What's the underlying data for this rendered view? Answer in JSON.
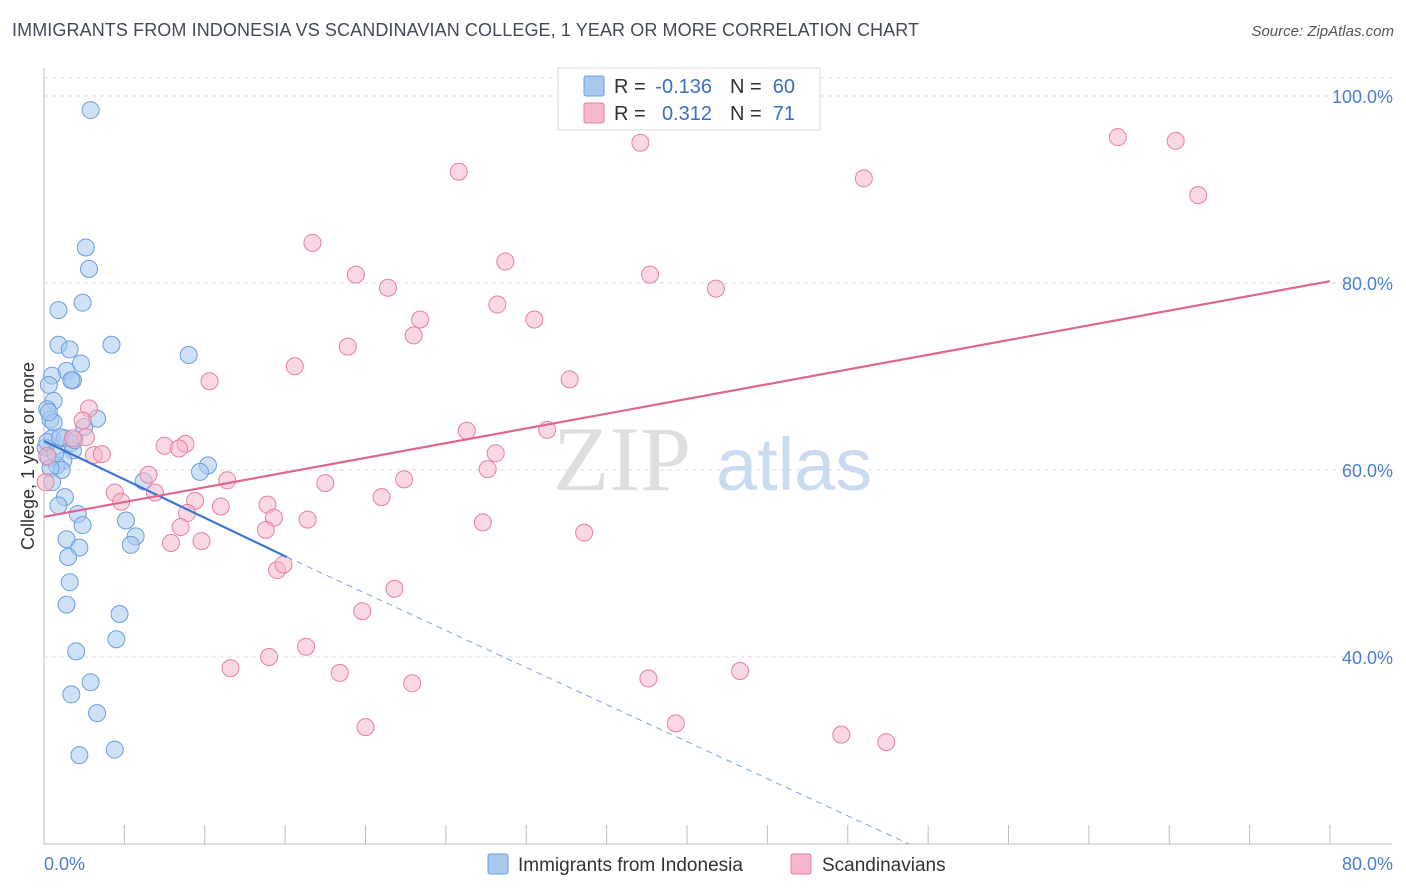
{
  "header": {
    "title": "IMMIGRANTS FROM INDONESIA VS SCANDINAVIAN COLLEGE, 1 YEAR OR MORE CORRELATION CHART",
    "source": "Source: ZipAtlas.com"
  },
  "watermark": {
    "zip": "ZIP",
    "atlas": "atlas"
  },
  "legend": {
    "rows": [
      {
        "r_label": "R =",
        "r_value": "-0.136",
        "n_label": "N =",
        "n_value": "60",
        "color": "#a8c8f0"
      },
      {
        "r_label": "R =",
        "r_value": "0.312",
        "n_label": "N =",
        "n_value": "71",
        "color": "#f5b8cb"
      }
    ]
  },
  "bottom_legend": {
    "items": [
      {
        "label": "Immigrants from Indonesia",
        "color": "#a8c8f0"
      },
      {
        "label": "Scandinavians",
        "color": "#f5b8cb"
      }
    ]
  },
  "chart_data": {
    "type": "scatter",
    "title": "IMMIGRANTS FROM INDONESIA VS SCANDINAVIAN COLLEGE, 1 YEAR OR MORE CORRELATION CHART",
    "xlabel": "",
    "ylabel": "College, 1 year or more",
    "xlim": [
      0,
      80
    ],
    "ylim": [
      20,
      103
    ],
    "x_tick_labels": [
      "0.0%",
      "80.0%"
    ],
    "y_ticks": [
      40,
      60,
      80,
      100
    ],
    "y_tick_labels": [
      "40.0%",
      "60.0%",
      "80.0%",
      "100.0%"
    ],
    "grid": true,
    "legend_position": "top-center",
    "series": [
      {
        "name": "Immigrants from Indonesia",
        "color": "#a8c8f0",
        "stroke": "#6d9fdb",
        "points": [
          [
            2.9,
            98.5
          ],
          [
            2.6,
            83.8
          ],
          [
            2.8,
            81.5
          ],
          [
            2.4,
            77.9
          ],
          [
            0.9,
            77.1
          ],
          [
            4.2,
            73.4
          ],
          [
            0.9,
            73.4
          ],
          [
            1.6,
            72.9
          ],
          [
            2.3,
            71.4
          ],
          [
            1.4,
            70.6
          ],
          [
            0.5,
            70.1
          ],
          [
            0.3,
            69.1
          ],
          [
            1.8,
            69.6
          ],
          [
            1.7,
            69.6
          ],
          [
            9.0,
            72.3
          ],
          [
            0.6,
            67.4
          ],
          [
            0.2,
            66.5
          ],
          [
            0.4,
            65.4
          ],
          [
            0.6,
            65.1
          ],
          [
            3.3,
            65.5
          ],
          [
            2.5,
            64.6
          ],
          [
            0.5,
            63.4
          ],
          [
            1.3,
            63.4
          ],
          [
            1.7,
            62.9
          ],
          [
            0.1,
            62.4
          ],
          [
            1.8,
            62.1
          ],
          [
            0.3,
            61.3
          ],
          [
            1.2,
            61.0
          ],
          [
            0.8,
            60.5
          ],
          [
            1.1,
            60.0
          ],
          [
            10.2,
            60.5
          ],
          [
            9.7,
            59.8
          ],
          [
            6.2,
            58.8
          ],
          [
            1.3,
            57.1
          ],
          [
            0.9,
            56.2
          ],
          [
            2.1,
            55.3
          ],
          [
            5.1,
            54.6
          ],
          [
            2.4,
            54.1
          ],
          [
            5.7,
            52.9
          ],
          [
            1.4,
            52.6
          ],
          [
            2.2,
            51.7
          ],
          [
            5.4,
            52.0
          ],
          [
            1.5,
            50.7
          ],
          [
            1.6,
            48.0
          ],
          [
            1.4,
            45.6
          ],
          [
            4.7,
            44.6
          ],
          [
            2.0,
            40.6
          ],
          [
            4.5,
            41.9
          ],
          [
            2.9,
            37.3
          ],
          [
            1.7,
            36.0
          ],
          [
            3.3,
            34.0
          ],
          [
            4.4,
            30.1
          ],
          [
            2.2,
            29.5
          ],
          [
            0.2,
            63.0
          ],
          [
            0.4,
            60.2
          ],
          [
            0.3,
            66.2
          ],
          [
            1.0,
            63.5
          ],
          [
            0.7,
            61.8
          ],
          [
            1.9,
            63.2
          ],
          [
            0.5,
            58.7
          ]
        ],
        "trend": {
          "x": [
            0,
            15.1
          ],
          "y": [
            63.1,
            50.7
          ]
        },
        "trend_extension": {
          "x": [
            15.1,
            53.8
          ],
          "y": [
            50.7,
            20.0
          ]
        }
      },
      {
        "name": "Scandinavians",
        "color": "#f5b8cb",
        "stroke": "#e8809f",
        "points": [
          [
            47.7,
            100.0
          ],
          [
            37.1,
            95.0
          ],
          [
            66.8,
            95.6
          ],
          [
            70.4,
            95.2
          ],
          [
            51.0,
            91.2
          ],
          [
            71.8,
            89.4
          ],
          [
            25.8,
            91.9
          ],
          [
            16.7,
            84.3
          ],
          [
            28.7,
            82.3
          ],
          [
            19.4,
            80.9
          ],
          [
            37.7,
            80.9
          ],
          [
            21.4,
            79.5
          ],
          [
            41.8,
            79.4
          ],
          [
            28.2,
            77.7
          ],
          [
            23.4,
            76.1
          ],
          [
            30.5,
            76.1
          ],
          [
            23.0,
            74.4
          ],
          [
            18.9,
            73.2
          ],
          [
            15.6,
            71.1
          ],
          [
            32.7,
            69.7
          ],
          [
            10.3,
            69.5
          ],
          [
            2.8,
            66.6
          ],
          [
            2.4,
            65.3
          ],
          [
            2.6,
            63.5
          ],
          [
            26.3,
            64.2
          ],
          [
            31.3,
            64.3
          ],
          [
            8.8,
            62.8
          ],
          [
            7.5,
            62.6
          ],
          [
            8.4,
            62.3
          ],
          [
            3.1,
            61.6
          ],
          [
            28.1,
            61.8
          ],
          [
            3.6,
            61.7
          ],
          [
            27.6,
            60.1
          ],
          [
            6.5,
            59.5
          ],
          [
            22.4,
            59.0
          ],
          [
            17.5,
            58.6
          ],
          [
            11.4,
            58.9
          ],
          [
            4.4,
            57.6
          ],
          [
            6.9,
            57.6
          ],
          [
            4.8,
            56.6
          ],
          [
            9.4,
            56.7
          ],
          [
            11.0,
            56.1
          ],
          [
            13.9,
            56.3
          ],
          [
            21.0,
            57.1
          ],
          [
            8.9,
            55.4
          ],
          [
            14.3,
            54.9
          ],
          [
            16.4,
            54.7
          ],
          [
            27.3,
            54.4
          ],
          [
            8.5,
            53.9
          ],
          [
            13.8,
            53.6
          ],
          [
            33.6,
            53.3
          ],
          [
            9.8,
            52.4
          ],
          [
            7.9,
            52.2
          ],
          [
            14.5,
            49.3
          ],
          [
            14.9,
            49.9
          ],
          [
            21.8,
            47.3
          ],
          [
            19.8,
            44.9
          ],
          [
            16.3,
            41.1
          ],
          [
            14.0,
            40.0
          ],
          [
            11.6,
            38.8
          ],
          [
            18.4,
            38.3
          ],
          [
            22.9,
            37.2
          ],
          [
            37.6,
            37.7
          ],
          [
            43.3,
            38.5
          ],
          [
            39.3,
            32.9
          ],
          [
            49.6,
            31.7
          ],
          [
            52.4,
            30.9
          ],
          [
            20.0,
            32.5
          ],
          [
            0.2,
            61.5
          ],
          [
            1.8,
            63.4
          ],
          [
            0.1,
            58.7
          ]
        ],
        "trend": {
          "x": [
            0,
            80
          ],
          "y": [
            55.0,
            80.2
          ]
        }
      }
    ]
  }
}
